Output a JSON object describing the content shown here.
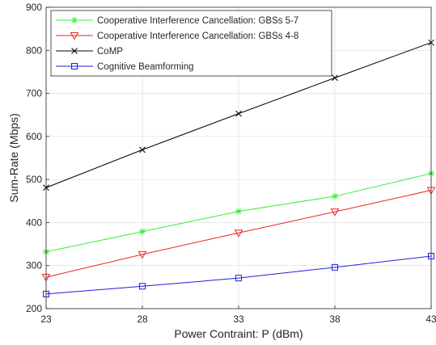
{
  "chart_data": {
    "type": "line",
    "xlabel": "Power Contraint: P (dBm)",
    "ylabel": "Sum-Rate (Mbps)",
    "xlim": [
      23,
      43
    ],
    "ylim": [
      200,
      900
    ],
    "xticks": [
      "23",
      "28",
      "33",
      "38",
      "43"
    ],
    "yticks": [
      "200",
      "300",
      "400",
      "500",
      "600",
      "700",
      "800",
      "900"
    ],
    "grid": true,
    "legend_position": "top-left",
    "x": [
      23,
      28,
      33,
      38,
      43
    ],
    "series": [
      {
        "name": "Cooperative Interference Cancellation: GBSs 5-7",
        "color": "#33ee33",
        "marker": "asterisk",
        "values": [
          332,
          379,
          426,
          461,
          514
        ]
      },
      {
        "name": "Cooperative Interference Cancellation: GBSs 4-8",
        "color": "#ee2222",
        "marker": "triangle-down",
        "values": [
          273,
          326,
          376,
          425,
          475
        ]
      },
      {
        "name": "CoMP",
        "color": "#000000",
        "marker": "x",
        "values": [
          481,
          569,
          653,
          736,
          818
        ]
      },
      {
        "name": "Cognitive Beamforming",
        "color": "#1f1fdd",
        "marker": "square",
        "values": [
          234,
          252,
          271,
          296,
          322
        ]
      }
    ]
  }
}
